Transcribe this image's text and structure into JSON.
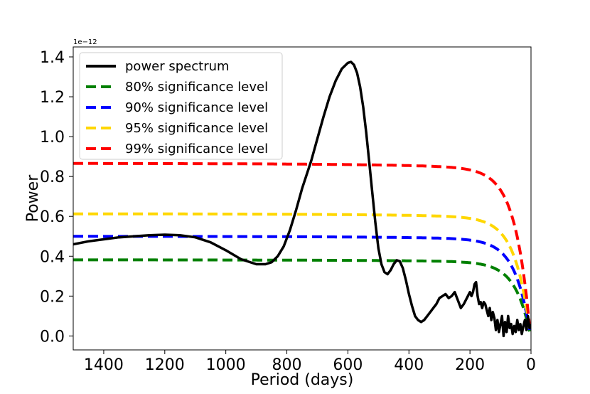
{
  "chart_data": {
    "type": "line",
    "title": "",
    "xlabel": "Period (days)",
    "ylabel": "Power",
    "y_offset_label": "1e−12",
    "xlim": [
      1500,
      0
    ],
    "ylim": [
      -0.07,
      1.45
    ],
    "xticks": [
      1400,
      1200,
      1000,
      800,
      600,
      400,
      200,
      0
    ],
    "yticks": [
      0.0,
      0.2,
      0.4,
      0.6,
      0.8,
      1.0,
      1.2,
      1.4
    ],
    "ytick_labels": [
      "0.0",
      "0.2",
      "0.4",
      "0.6",
      "0.8",
      "1.0",
      "1.2",
      "1.4"
    ],
    "grid": false,
    "legend_position": "top-left",
    "series": [
      {
        "name": "power spectrum",
        "color": "#000000",
        "style": "solid",
        "x": [
          1500,
          1450,
          1400,
          1350,
          1300,
          1250,
          1200,
          1150,
          1100,
          1050,
          1000,
          950,
          900,
          870,
          850,
          830,
          810,
          790,
          770,
          750,
          720,
          700,
          680,
          660,
          640,
          620,
          600,
          590,
          580,
          570,
          560,
          550,
          540,
          530,
          520,
          510,
          500,
          490,
          480,
          470,
          460,
          450,
          440,
          430,
          420,
          410,
          400,
          390,
          380,
          370,
          360,
          350,
          340,
          330,
          320,
          310,
          300,
          290,
          280,
          270,
          260,
          250,
          240,
          230,
          220,
          210,
          200,
          195,
          190,
          185,
          180,
          175,
          170,
          165,
          160,
          155,
          150,
          145,
          140,
          135,
          130,
          125,
          120,
          115,
          110,
          105,
          100,
          95,
          90,
          85,
          80,
          75,
          70,
          65,
          60,
          55,
          50,
          45,
          40,
          35,
          30,
          25,
          20,
          15,
          10,
          5,
          2
        ],
        "values": [
          0.46,
          0.475,
          0.485,
          0.495,
          0.5,
          0.505,
          0.508,
          0.505,
          0.495,
          0.47,
          0.43,
          0.385,
          0.36,
          0.36,
          0.37,
          0.4,
          0.45,
          0.53,
          0.63,
          0.74,
          0.88,
          0.99,
          1.1,
          1.2,
          1.28,
          1.34,
          1.37,
          1.375,
          1.36,
          1.32,
          1.25,
          1.15,
          1.02,
          0.87,
          0.72,
          0.57,
          0.44,
          0.36,
          0.32,
          0.31,
          0.33,
          0.36,
          0.38,
          0.375,
          0.34,
          0.28,
          0.21,
          0.15,
          0.1,
          0.08,
          0.07,
          0.08,
          0.1,
          0.12,
          0.14,
          0.16,
          0.19,
          0.2,
          0.21,
          0.19,
          0.2,
          0.22,
          0.18,
          0.14,
          0.16,
          0.19,
          0.22,
          0.2,
          0.22,
          0.26,
          0.27,
          0.2,
          0.16,
          0.17,
          0.14,
          0.17,
          0.16,
          0.13,
          0.1,
          0.14,
          0.08,
          0.12,
          0.09,
          0.03,
          0.08,
          0.02,
          0.06,
          0.1,
          0.0,
          0.07,
          0.02,
          0.1,
          0.04,
          0.06,
          0.01,
          0.05,
          0.02,
          0.08,
          0.03,
          0.06,
          0.01,
          0.05,
          0.08,
          0.03,
          0.1,
          0.04,
          0.06
        ]
      },
      {
        "name": "80% significance level",
        "color": "#008000",
        "style": "dashed",
        "plateau": 0.382,
        "values_at_selected_periods": {
          "1500": 0.382,
          "1000": 0.382,
          "600": 0.378,
          "400": 0.37,
          "200": 0.34,
          "100": 0.27,
          "50": 0.16,
          "20": 0.07,
          "5": 0.02
        }
      },
      {
        "name": "90% significance level",
        "color": "#0000ff",
        "style": "dashed",
        "plateau": 0.5,
        "values_at_selected_periods": {
          "1500": 0.5,
          "1000": 0.5,
          "600": 0.497,
          "400": 0.488,
          "200": 0.45,
          "100": 0.36,
          "50": 0.21,
          "20": 0.09,
          "5": 0.025
        }
      },
      {
        "name": "95% significance level",
        "color": "#ffd700",
        "style": "dashed",
        "plateau": 0.613,
        "values_at_selected_periods": {
          "1500": 0.613,
          "1000": 0.613,
          "600": 0.608,
          "400": 0.598,
          "200": 0.55,
          "100": 0.44,
          "50": 0.26,
          "20": 0.11,
          "5": 0.03
        }
      },
      {
        "name": "99% significance level",
        "color": "#ff0000",
        "style": "dashed",
        "plateau": 0.866,
        "values_at_selected_periods": {
          "1500": 0.866,
          "1000": 0.866,
          "600": 0.86,
          "400": 0.845,
          "200": 0.78,
          "100": 0.62,
          "50": 0.36,
          "20": 0.15,
          "5": 0.04
        }
      }
    ]
  }
}
